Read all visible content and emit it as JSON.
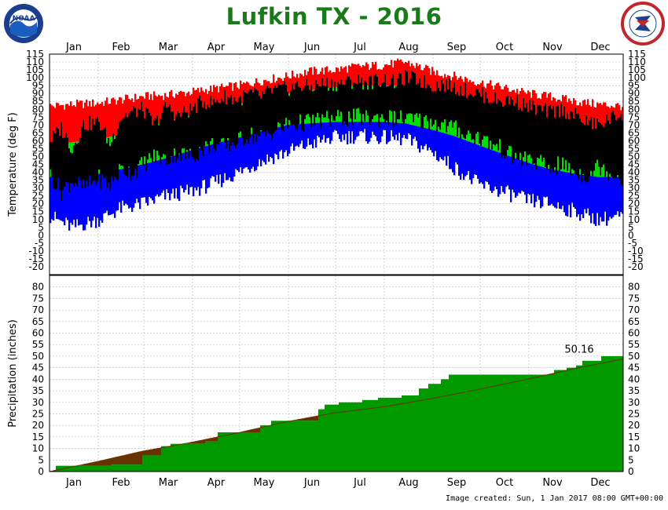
{
  "title": "Lufkin TX - 2016",
  "footer": "Image created: Sun, 1 Jan 2017 08:00 GMT+00:00",
  "logos": {
    "left": "noaa-logo",
    "right": "nws-logo",
    "left_text": "NOAA"
  },
  "colors": {
    "title": "#1a7a1a",
    "record_high": "#ff0000",
    "observed": "#000000",
    "normal": "#00dd00",
    "record_low": "#0000ff",
    "precip_observed": "#009900",
    "precip_normal": "#663300"
  },
  "chart_data": [
    {
      "type": "area",
      "ylabel": "Temperature (deg F)",
      "xlabel": "",
      "months": [
        "Jan",
        "Feb",
        "Mar",
        "Apr",
        "May",
        "Jun",
        "Jul",
        "Aug",
        "Sep",
        "Oct",
        "Nov",
        "Dec"
      ],
      "ylim": [
        -25,
        115
      ],
      "yticks": [
        115,
        110,
        105,
        100,
        95,
        90,
        85,
        80,
        75,
        70,
        65,
        60,
        55,
        50,
        45,
        40,
        35,
        30,
        25,
        20,
        15,
        10,
        5,
        0,
        -5,
        -10,
        -15,
        -20
      ],
      "grid": true,
      "series": {
        "record_high": {
          "days": [
            1,
            15,
            32,
            46,
            60,
            75,
            91,
            105,
            121,
            135,
            152,
            166,
            182,
            196,
            213,
            227,
            244,
            258,
            274,
            288,
            305,
            319,
            335,
            350,
            366
          ],
          "values": [
            82,
            83,
            84,
            86,
            88,
            89,
            91,
            93,
            95,
            98,
            101,
            104,
            105,
            107,
            108,
            110,
            104,
            101,
            97,
            94,
            90,
            88,
            85,
            83,
            82
          ]
        },
        "normal_high": {
          "days": [
            1,
            15,
            32,
            46,
            60,
            75,
            91,
            105,
            121,
            135,
            152,
            166,
            182,
            196,
            213,
            227,
            244,
            258,
            274,
            288,
            305,
            319,
            335,
            350,
            366
          ],
          "values": [
            58,
            59,
            61,
            64,
            68,
            72,
            76,
            79,
            83,
            86,
            90,
            92,
            94,
            95,
            95,
            95,
            91,
            88,
            83,
            79,
            72,
            67,
            62,
            59,
            58
          ]
        },
        "normal_low": {
          "days": [
            1,
            15,
            32,
            46,
            60,
            75,
            91,
            105,
            121,
            135,
            152,
            166,
            182,
            196,
            213,
            227,
            244,
            258,
            274,
            288,
            305,
            319,
            335,
            350,
            366
          ],
          "values": [
            37,
            37,
            39,
            42,
            45,
            49,
            54,
            58,
            62,
            66,
            70,
            71,
            72,
            72,
            72,
            71,
            67,
            63,
            57,
            52,
            46,
            42,
            39,
            37,
            37
          ]
        },
        "record_low": {
          "days": [
            1,
            15,
            32,
            46,
            60,
            75,
            91,
            105,
            121,
            135,
            152,
            166,
            182,
            196,
            213,
            227,
            244,
            258,
            274,
            288,
            305,
            319,
            335,
            350,
            366
          ],
          "values": [
            12,
            5,
            10,
            17,
            20,
            25,
            28,
            33,
            40,
            47,
            53,
            58,
            62,
            63,
            62,
            61,
            53,
            43,
            32,
            28,
            22,
            20,
            15,
            10,
            12
          ]
        },
        "observed_high": {
          "days": [
            1,
            8,
            15,
            22,
            32,
            39,
            46,
            53,
            60,
            67,
            75,
            82,
            91,
            98,
            105,
            112,
            121,
            128,
            135,
            142,
            152,
            159,
            166,
            173,
            182,
            189,
            196,
            203,
            213,
            220,
            227,
            234,
            244,
            251,
            258,
            265,
            274,
            281,
            288,
            295,
            305,
            312,
            319,
            326,
            335,
            342,
            350,
            357,
            366
          ],
          "values": [
            60,
            68,
            55,
            70,
            72,
            58,
            75,
            78,
            80,
            70,
            82,
            76,
            80,
            85,
            84,
            88,
            86,
            90,
            88,
            92,
            93,
            95,
            94,
            96,
            96,
            97,
            98,
            97,
            99,
            97,
            100,
            99,
            95,
            96,
            94,
            92,
            90,
            87,
            85,
            86,
            82,
            80,
            78,
            80,
            76,
            72,
            70,
            74,
            78
          ]
        },
        "observed_low": {
          "days": [
            1,
            8,
            15,
            22,
            32,
            39,
            46,
            53,
            60,
            67,
            75,
            82,
            91,
            98,
            105,
            112,
            121,
            128,
            135,
            142,
            152,
            159,
            166,
            173,
            182,
            189,
            196,
            203,
            213,
            220,
            227,
            234,
            244,
            251,
            258,
            265,
            274,
            281,
            288,
            295,
            305,
            312,
            319,
            326,
            335,
            342,
            350,
            357,
            366
          ],
          "values": [
            38,
            28,
            35,
            30,
            36,
            32,
            42,
            40,
            45,
            50,
            48,
            52,
            50,
            55,
            58,
            56,
            60,
            64,
            62,
            66,
            70,
            71,
            72,
            73,
            74,
            74,
            75,
            74,
            75,
            74,
            74,
            73,
            72,
            70,
            68,
            64,
            62,
            58,
            55,
            50,
            48,
            46,
            42,
            45,
            40,
            38,
            44,
            40,
            36
          ]
        }
      },
      "legend": []
    },
    {
      "type": "area",
      "ylabel": "Precipitation (inches)",
      "xlabel": "",
      "months": [
        "Jan",
        "Feb",
        "Mar",
        "Apr",
        "May",
        "Jun",
        "Jul",
        "Aug",
        "Sep",
        "Oct",
        "Nov",
        "Dec"
      ],
      "ylim": [
        0,
        85
      ],
      "yticks": [
        80,
        75,
        70,
        65,
        60,
        55,
        50,
        45,
        40,
        35,
        30,
        25,
        20,
        15,
        10,
        5,
        0
      ],
      "grid": true,
      "annotation": {
        "label": "50.16",
        "value": 50.16
      },
      "series": {
        "observed_cumulative": {
          "days": [
            1,
            5,
            14,
            40,
            45,
            58,
            60,
            62,
            72,
            78,
            90,
            100,
            106,
            108,
            115,
            135,
            140,
            142,
            152,
            172,
            176,
            185,
            200,
            210,
            213,
            225,
            230,
            236,
            242,
            250,
            255,
            270,
            285,
            300,
            318,
            322,
            330,
            336,
            340,
            352,
            366
          ],
          "values": [
            0,
            2.5,
            2.5,
            3,
            3,
            3,
            7,
            7,
            11,
            12,
            12,
            13,
            13,
            17,
            17,
            20,
            20,
            22,
            22,
            27,
            29,
            30,
            31,
            32,
            32,
            33,
            33,
            36,
            38,
            40,
            42,
            42,
            42,
            42,
            42,
            44,
            45,
            46,
            48,
            50,
            50.16
          ]
        },
        "normal_cumulative": {
          "days": [
            1,
            32,
            60,
            91,
            121,
            152,
            182,
            213,
            244,
            274,
            305,
            335,
            366
          ],
          "values": [
            0,
            4.4,
            8.8,
            12.6,
            16.8,
            21.6,
            25.4,
            28.0,
            31.6,
            35.6,
            40.0,
            44.6,
            48.8
          ]
        }
      }
    }
  ]
}
